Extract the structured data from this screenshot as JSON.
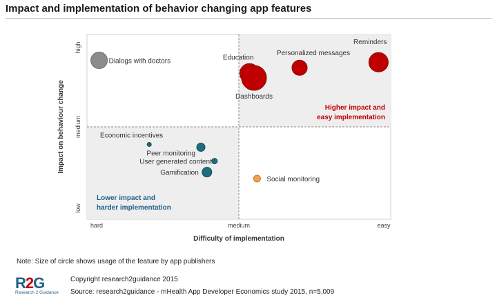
{
  "title": "Impact and implementation of behavior changing app features",
  "note": "Note: Size of circle shows usage of the feature by app publishers",
  "copyright": "Copyright research2guidance 2015",
  "source": "Source: research2guidance - mHealth App Developer Economics study 2015, n=5,009",
  "logo": {
    "mark_left": "R",
    "mark_mid": "2",
    "mark_right": "G",
    "subtitle": "Research 2 Guidance"
  },
  "chart_data": {
    "type": "scatter",
    "xlabel": "Difficulty of implementation",
    "ylabel": "Impact on behaviour change",
    "x_ticks": [
      "hard",
      "medium",
      "easy"
    ],
    "y_ticks": [
      "low",
      "medium",
      "high"
    ],
    "xlim": [
      0,
      2
    ],
    "ylim": [
      0,
      2
    ],
    "grid": false,
    "quadrant_labels": [
      {
        "lines": [
          "Higher impact and",
          "easy implementation"
        ],
        "color": "#c00000"
      },
      {
        "lines": [
          "Lower impact and",
          "harder implementation"
        ],
        "color": "#1f5f8a"
      }
    ],
    "colors": {
      "red": "#c00000",
      "teal": "#1e6e7e",
      "gray": "#8c8c8c",
      "orange": "#f0a050"
    },
    "points": [
      {
        "label": "Dialogs with doctors",
        "x": 0.08,
        "y": 1.72,
        "size": 12,
        "color": "#8c8c8c"
      },
      {
        "label": "Education",
        "x": 1.07,
        "y": 1.58,
        "size": 14,
        "color": "#c00000"
      },
      {
        "label": "Dashboards",
        "x": 1.1,
        "y": 1.53,
        "size": 18,
        "color": "#c00000"
      },
      {
        "label": "Personalized messages",
        "x": 1.4,
        "y": 1.64,
        "size": 11,
        "color": "#c00000"
      },
      {
        "label": "Reminders",
        "x": 1.92,
        "y": 1.7,
        "size": 14,
        "color": "#c00000"
      },
      {
        "label": "Economic incentives",
        "x": 0.41,
        "y": 0.81,
        "size": 3,
        "color": "#1e6e7e"
      },
      {
        "label": "Peer monitoring",
        "x": 0.75,
        "y": 0.78,
        "size": 6,
        "color": "#1e6e7e"
      },
      {
        "label": "User generated content",
        "x": 0.84,
        "y": 0.63,
        "size": 4,
        "color": "#1e6e7e"
      },
      {
        "label": "Gamification",
        "x": 0.79,
        "y": 0.51,
        "size": 7,
        "color": "#1e6e7e"
      },
      {
        "label": "Social monitoring",
        "x": 1.12,
        "y": 0.44,
        "size": 5,
        "color": "#f0a050"
      }
    ]
  }
}
